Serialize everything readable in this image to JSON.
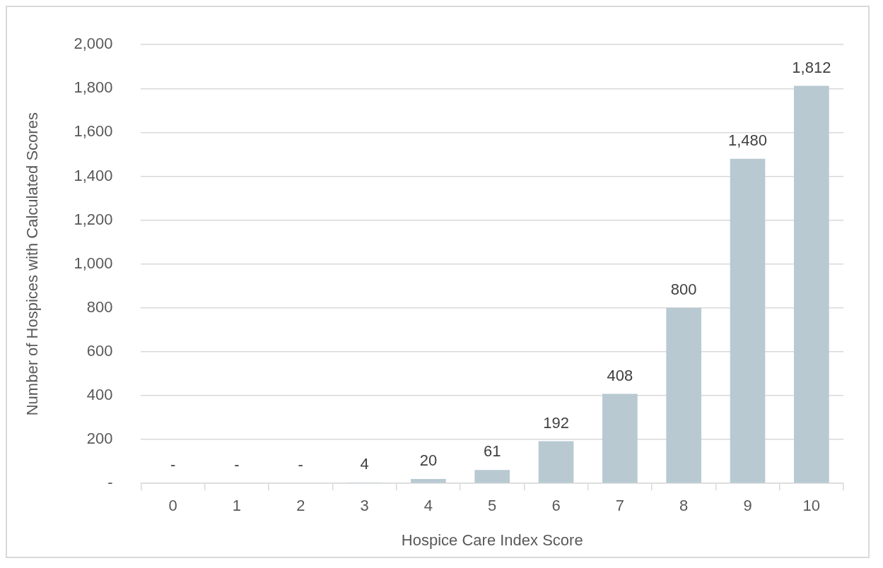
{
  "chart_data": {
    "type": "bar",
    "xlabel": "Hospice Care Index Score",
    "ylabel": "Number of Hospices with Calculated Scores",
    "categories": [
      "0",
      "1",
      "2",
      "3",
      "4",
      "5",
      "6",
      "7",
      "8",
      "9",
      "10"
    ],
    "values": [
      0,
      0,
      0,
      4,
      20,
      61,
      192,
      408,
      800,
      1480,
      1812
    ],
    "value_labels": [
      "-",
      "-",
      "-",
      "4",
      "20",
      "61",
      "192",
      "408",
      "800",
      "1,480",
      "1,812"
    ],
    "color": "#b8c9d2",
    "ylim": [
      0,
      2000
    ],
    "yticks": [
      {
        "value": 0,
        "label": "-"
      },
      {
        "value": 200,
        "label": "200"
      },
      {
        "value": 400,
        "label": "400"
      },
      {
        "value": 600,
        "label": "600"
      },
      {
        "value": 800,
        "label": "800"
      },
      {
        "value": 1000,
        "label": "1,000"
      },
      {
        "value": 1200,
        "label": "1,200"
      },
      {
        "value": 1400,
        "label": "1,400"
      },
      {
        "value": 1600,
        "label": "1,600"
      },
      {
        "value": 1800,
        "label": "1,800"
      },
      {
        "value": 2000,
        "label": "2,000"
      }
    ],
    "grid": "y",
    "legend": false
  }
}
